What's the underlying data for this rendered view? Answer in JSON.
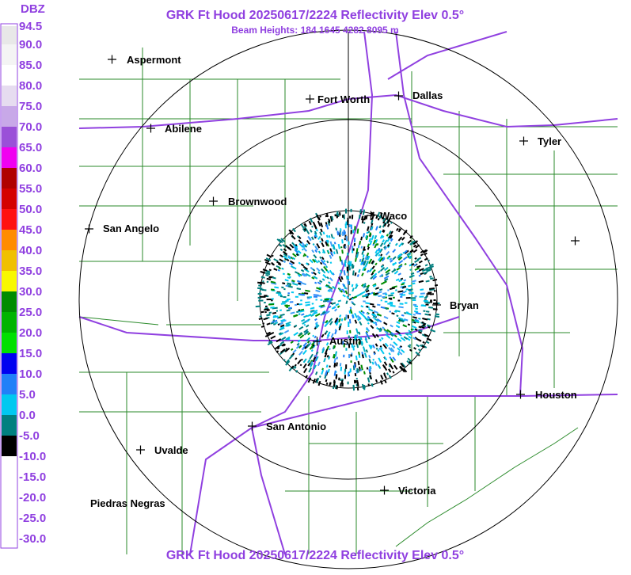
{
  "header": {
    "title": "GRK Ft Hood 20250617/2224 Reflectivity Elev 0.5°",
    "subtitle": "Beam Heights: 184 1645 4282 8095 m",
    "footer": "GRK Ft Hood 20250617/2224 Reflectivity Elev 0.5°"
  },
  "legend": {
    "title": "DBZ",
    "scale": [
      {
        "label": "94.5",
        "color": "#e8e8e8"
      },
      {
        "label": "90.0",
        "color": "#f4f4f4"
      },
      {
        "label": "85.0",
        "color": "#ffffff"
      },
      {
        "label": "80.0",
        "color": "#e6dcf0"
      },
      {
        "label": "75.0",
        "color": "#c8a8e8"
      },
      {
        "label": "70.0",
        "color": "#9a50d8"
      },
      {
        "label": "65.0",
        "color": "#f000f0"
      },
      {
        "label": "60.0",
        "color": "#b00000"
      },
      {
        "label": "55.0",
        "color": "#d40000"
      },
      {
        "label": "50.0",
        "color": "#ff1010"
      },
      {
        "label": "45.0",
        "color": "#ff8c00"
      },
      {
        "label": "40.0",
        "color": "#f0c000"
      },
      {
        "label": "35.0",
        "color": "#f8f800"
      },
      {
        "label": "30.0",
        "color": "#008c00"
      },
      {
        "label": "25.0",
        "color": "#00b400"
      },
      {
        "label": "20.0",
        "color": "#00e000"
      },
      {
        "label": "15.0",
        "color": "#0000f0"
      },
      {
        "label": "10.0",
        "color": "#2080f8"
      },
      {
        "label": "5.0",
        "color": "#00c8f0"
      },
      {
        "label": "0.0",
        "color": "#008080"
      },
      {
        "label": "-5.0",
        "color": "#000000"
      },
      {
        "label": "-10.0",
        "color": "#ffffff"
      },
      {
        "label": "-15.0",
        "color": "#ffffff"
      },
      {
        "label": "-20.0",
        "color": "#ffffff"
      },
      {
        "label": "-25.0",
        "color": "#ffffff"
      },
      {
        "label": "-30.0",
        "color": "#ffffff"
      }
    ]
  },
  "cities": [
    {
      "name": "Aspermont"
    },
    {
      "name": "Abilene"
    },
    {
      "name": "Fort Worth"
    },
    {
      "name": "Dallas"
    },
    {
      "name": "Tyler"
    },
    {
      "name": "Brownwood"
    },
    {
      "name": "Waco"
    },
    {
      "name": "San Angelo"
    },
    {
      "name": "Bryan"
    },
    {
      "name": "Austin"
    },
    {
      "name": "Houston"
    },
    {
      "name": "San Antonio"
    },
    {
      "name": "Uvalde"
    },
    {
      "name": "Piedras Negras"
    },
    {
      "name": "Victoria"
    }
  ]
}
